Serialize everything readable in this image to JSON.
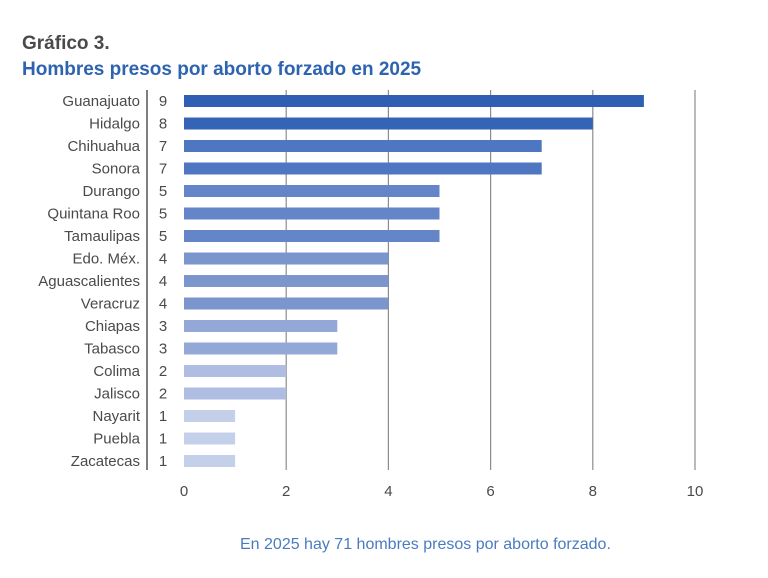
{
  "header": {
    "label": "Gráfico 3.",
    "title": "Hombres presos por aborto forzado en 2025"
  },
  "footnote": "En 2025 hay 71 hombres presos por aborto forzado.",
  "colors": {
    "text_dark": "#4a4a4a",
    "title_blue": "#2e63b0",
    "footnote_blue": "#4a7bc0",
    "gridline": "#8c8c8c",
    "bar_9": "#2f5fb3",
    "bar_8": "#3563b5",
    "bar_7": "#4f76c1",
    "bar_5": "#6486c9",
    "bar_4": "#7b95cd",
    "bar_3": "#93a8d7",
    "bar_2": "#aebde1",
    "bar_1": "#c4d0ea"
  },
  "chart_data": {
    "type": "bar",
    "orientation": "horizontal",
    "title": "Hombres presos por aborto forzado en 2025",
    "categories": [
      "Guanajuato",
      "Hidalgo",
      "Chihuahua",
      "Sonora",
      "Durango",
      "Quintana Roo",
      "Tamaulipas",
      "Edo. Méx.",
      "Aguascalientes",
      "Veracruz",
      "Chiapas",
      "Tabasco",
      "Colima",
      "Jalisco",
      "Nayarit",
      "Puebla",
      "Zacatecas"
    ],
    "values": [
      9,
      8,
      7,
      7,
      5,
      5,
      5,
      4,
      4,
      4,
      3,
      3,
      2,
      2,
      1,
      1,
      1
    ],
    "xlim": [
      0,
      10
    ],
    "xticks": [
      0,
      2,
      4,
      6,
      8,
      10
    ],
    "grid": true,
    "xlabel": "",
    "ylabel": ""
  }
}
